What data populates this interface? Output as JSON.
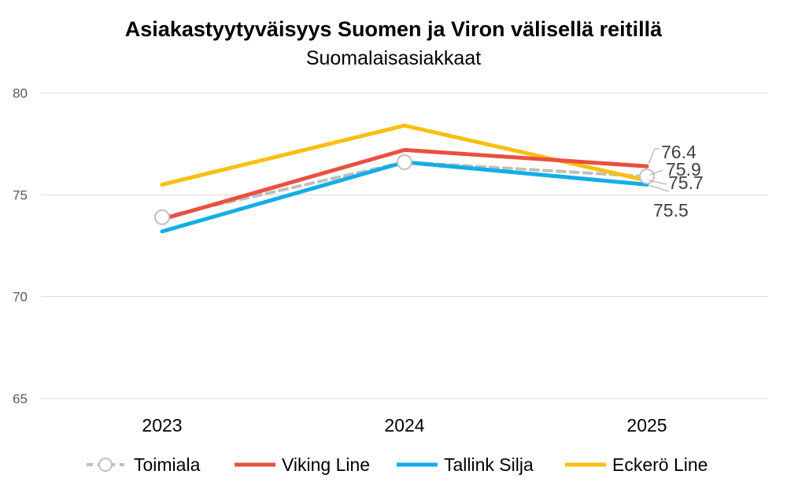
{
  "chart_data": {
    "type": "line",
    "title": "Asiakastyytyväisyys Suomen ja Viron välisellä reitillä",
    "subtitle": "Suomalaisasiakkaat",
    "categories": [
      "2023",
      "2024",
      "2025"
    ],
    "ylim": [
      65,
      80
    ],
    "yticks": [
      65,
      70,
      75,
      80
    ],
    "grid": true,
    "legend_position": "bottom",
    "series": [
      {
        "name": "Toimiala",
        "values": [
          73.9,
          76.6,
          75.9
        ],
        "color": "#bfbfbf",
        "style": "dashed-marker"
      },
      {
        "name": "Viking Line",
        "values": [
          73.8,
          77.2,
          76.4
        ],
        "color": "#e8513f",
        "style": "solid"
      },
      {
        "name": "Tallink Silja",
        "values": [
          73.2,
          76.6,
          75.5
        ],
        "color": "#12aee8",
        "style": "solid"
      },
      {
        "name": "Eckerö Line",
        "values": [
          75.5,
          78.4,
          75.7
        ],
        "color": "#fbbf0f",
        "style": "solid"
      }
    ],
    "data_labels": [
      {
        "series": "Viking Line",
        "text": "76.4"
      },
      {
        "series": "Toimiala",
        "text": "75.9"
      },
      {
        "series": "Eckerö Line",
        "text": "75.7"
      },
      {
        "series": "Tallink Silja",
        "text": "75.5"
      }
    ]
  }
}
